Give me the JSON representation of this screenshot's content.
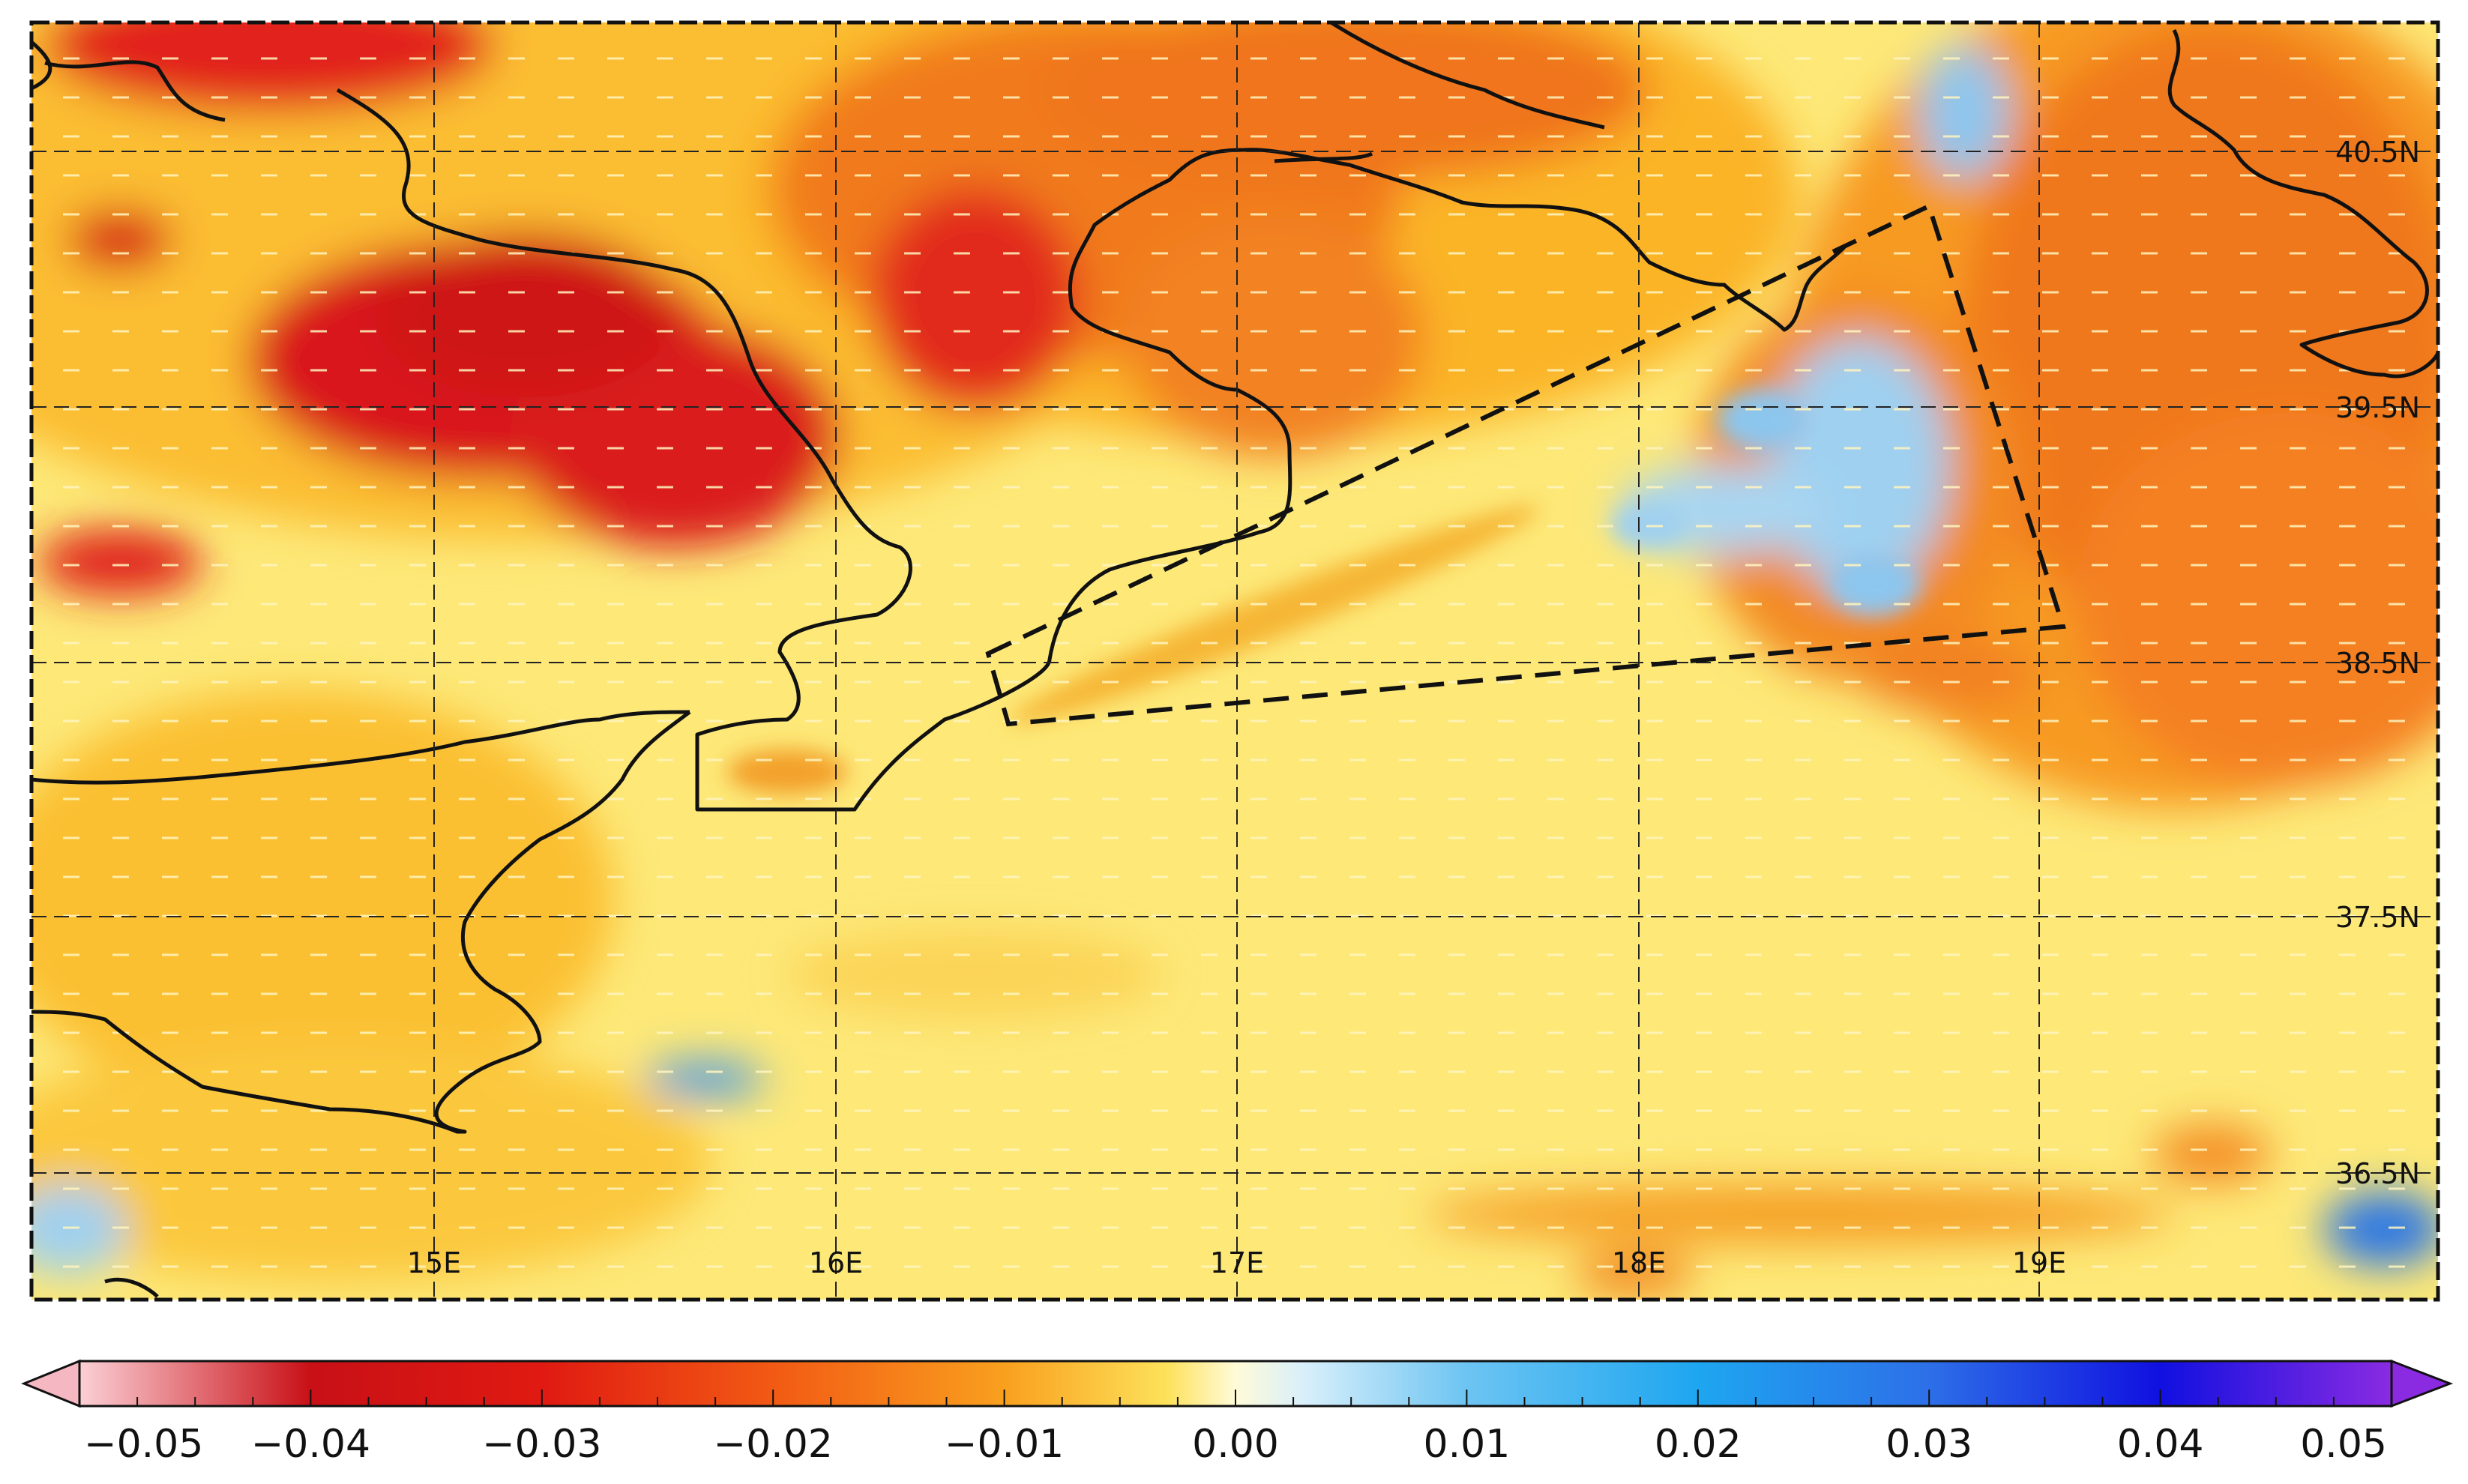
{
  "map": {
    "lon_labels": [
      "15E",
      "16E",
      "17E",
      "18E",
      "19E"
    ],
    "lat_labels": [
      "40.5N",
      "39.5N",
      "38.5N",
      "37.5N",
      "36.5N"
    ],
    "grid_lon_values": [
      15,
      16,
      17,
      18,
      19
    ],
    "grid_lat_values": [
      40.5,
      39.5,
      38.5,
      37.5,
      36.5
    ],
    "colors": {
      "strong_negative": "#d9171a",
      "moderate_negative": "#f07a18",
      "weak_negative": "#fbb928",
      "near_zero": "#fde878",
      "weak_positive": "#9fd0f0",
      "strong_positive": "#2f78e4",
      "coastline": "#111111",
      "grid": "#222222",
      "wind_barbs": "#fff5c0"
    }
  },
  "colorbar": {
    "min": -0.05,
    "max": 0.05,
    "tick_labels": [
      "−0.05",
      "−0.04",
      "−0.03",
      "−0.02",
      "−0.01",
      "0.00",
      "0.01",
      "0.02",
      "0.03",
      "0.04",
      "0.05"
    ],
    "extend_low_color": "#f5b7c2",
    "extend_high_color": "#8a2be2"
  }
}
